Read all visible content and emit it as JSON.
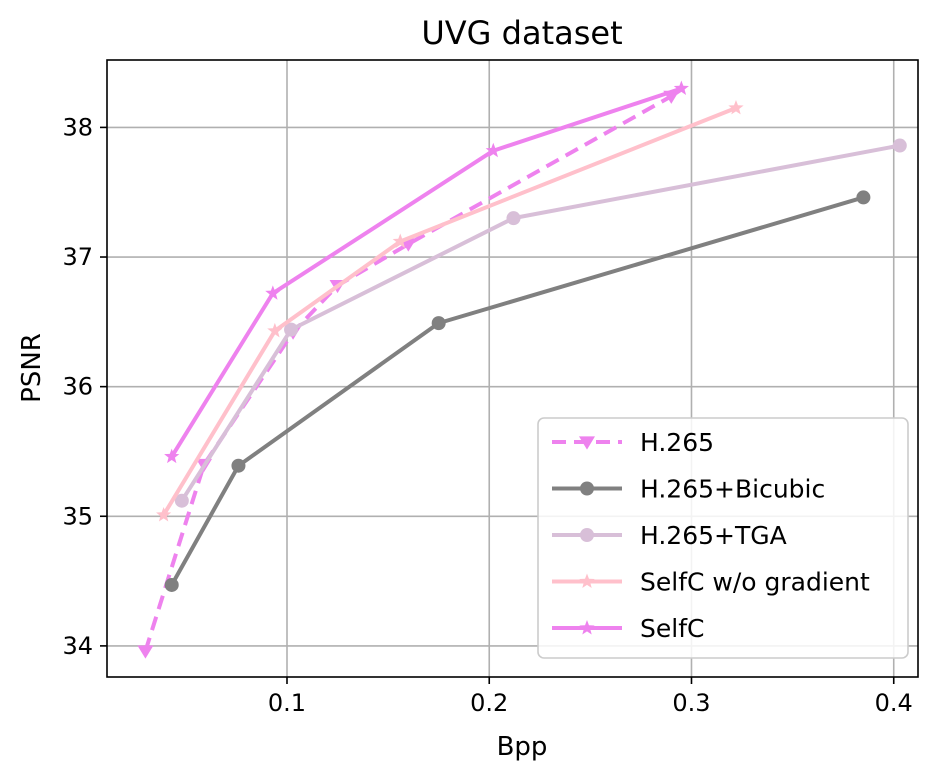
{
  "chart_data": {
    "type": "line",
    "title": "UVG dataset",
    "xlabel": "Bpp",
    "ylabel": "PSNR",
    "xlim": [
      0.011,
      0.412
    ],
    "ylim": [
      33.76,
      38.52
    ],
    "xticks": [
      {
        "value": 0.1,
        "label": "0.1"
      },
      {
        "value": 0.2,
        "label": "0.2"
      },
      {
        "value": 0.3,
        "label": "0.3"
      },
      {
        "value": 0.4,
        "label": "0.4"
      }
    ],
    "yticks": [
      {
        "value": 34,
        "label": "34"
      },
      {
        "value": 35,
        "label": "35"
      },
      {
        "value": 36,
        "label": "36"
      },
      {
        "value": 37,
        "label": "37"
      },
      {
        "value": 38,
        "label": "38"
      }
    ],
    "grid": true,
    "legend_position": "lower-right",
    "series": [
      {
        "name": "H.265",
        "color": "#ee82ee",
        "dashed": true,
        "marker": "triangle-down",
        "x": [
          0.03,
          0.059,
          0.103,
          0.125,
          0.16,
          0.29
        ],
        "y": [
          33.96,
          35.4,
          36.42,
          36.78,
          37.1,
          38.24
        ]
      },
      {
        "name": "H.265+Bicubic",
        "color": "#808080",
        "dashed": false,
        "marker": "circle",
        "x": [
          0.043,
          0.076,
          0.175,
          0.385
        ],
        "y": [
          34.47,
          35.39,
          36.49,
          37.46
        ]
      },
      {
        "name": "H.265+TGA",
        "color": "#d8bfd8",
        "dashed": false,
        "marker": "circle",
        "x": [
          0.048,
          0.102,
          0.212,
          0.403
        ],
        "y": [
          35.12,
          36.44,
          37.3,
          37.86
        ]
      },
      {
        "name": "SelfC w/o gradient",
        "color": "#ffc0cb",
        "dashed": false,
        "marker": "star",
        "x": [
          0.039,
          0.094,
          0.156,
          0.322
        ],
        "y": [
          35.01,
          36.43,
          37.12,
          38.15
        ]
      },
      {
        "name": "SelfC",
        "color": "#ee82ee",
        "dashed": false,
        "marker": "star",
        "x": [
          0.043,
          0.093,
          0.202,
          0.295
        ],
        "y": [
          35.46,
          36.72,
          37.82,
          38.3
        ]
      }
    ]
  }
}
